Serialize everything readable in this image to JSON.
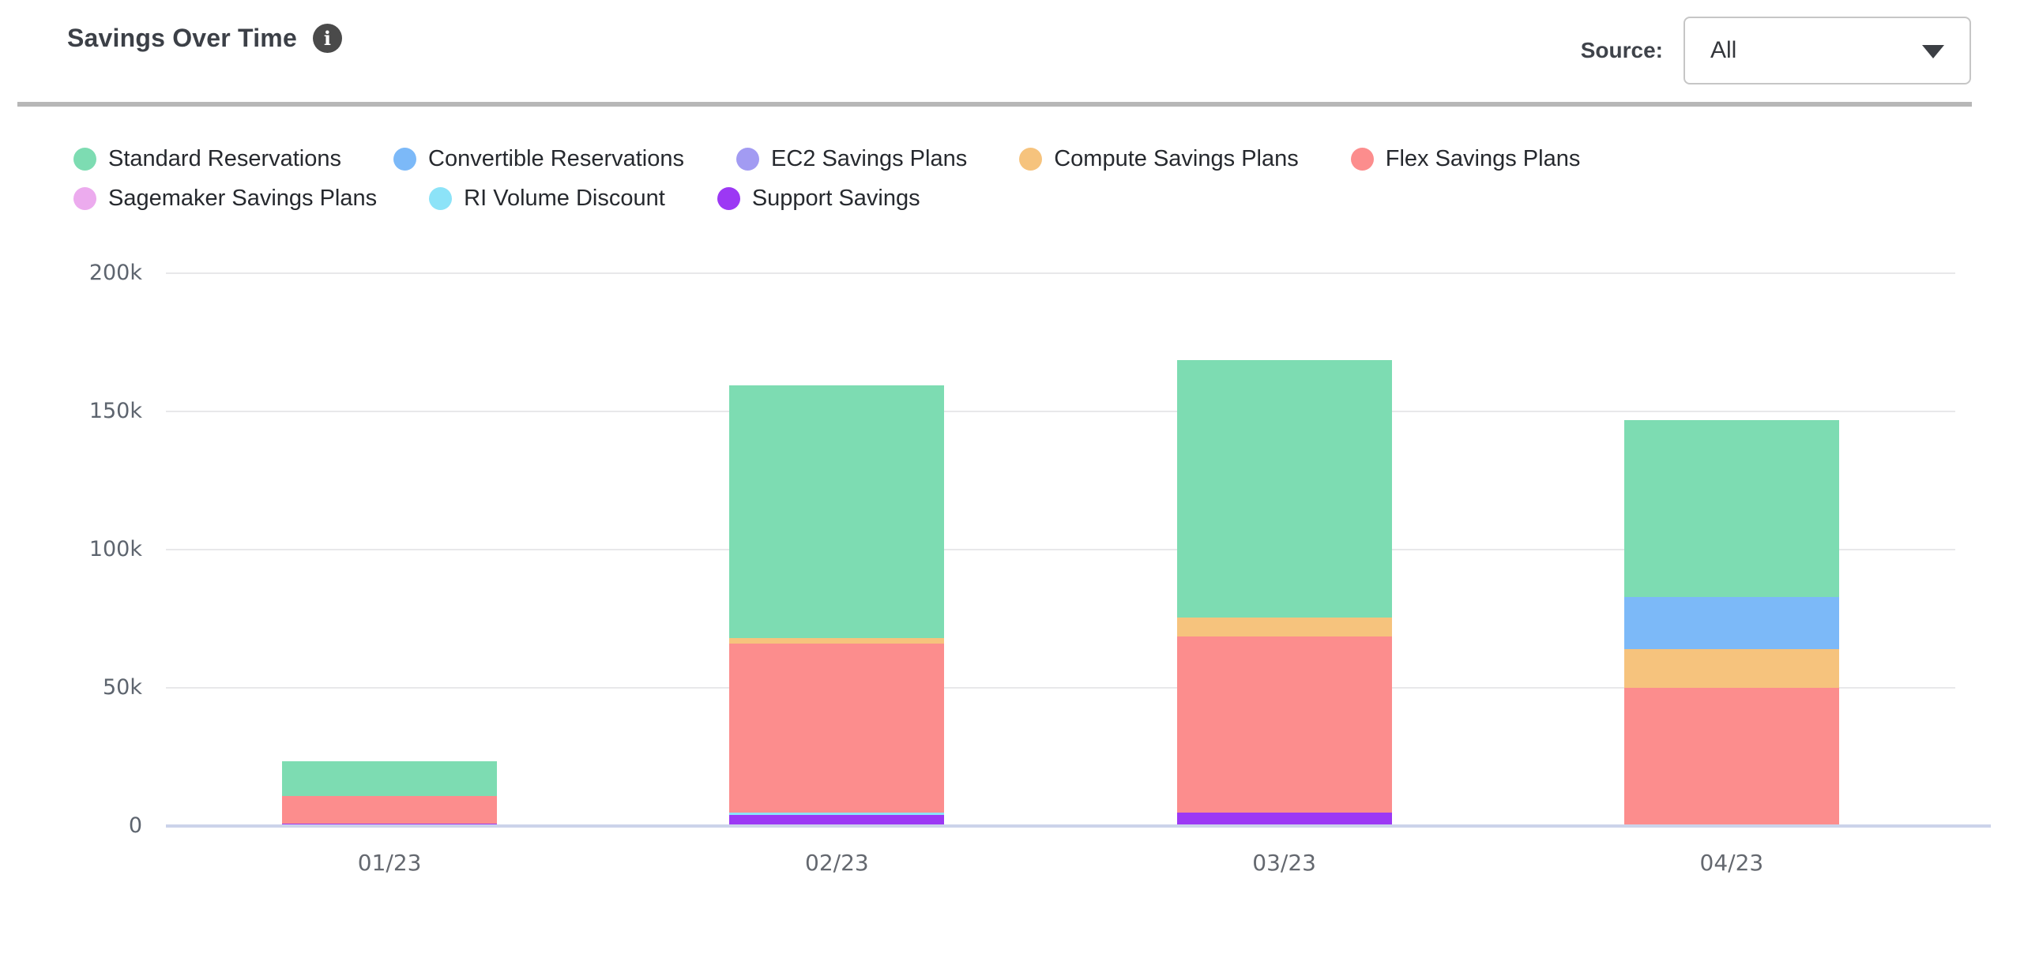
{
  "header": {
    "title": "Savings Over Time",
    "info_icon_glyph": "i",
    "source_label": "Source:",
    "source_value": "All"
  },
  "chart_data": {
    "type": "bar",
    "stacked": true,
    "stack_order": "reverse-legend (Support Savings at bottom, Standard Reservations on top)",
    "title": "Savings Over Time",
    "xlabel": "",
    "ylabel": "",
    "legend_position": "top",
    "grid": true,
    "categories": [
      "01/23",
      "02/23",
      "03/23",
      "04/23"
    ],
    "series": [
      {
        "name": "Standard Reservations",
        "color": "#7ddcb2",
        "values": [
          12500,
          91500,
          93000,
          64000
        ]
      },
      {
        "name": "Convertible Reservations",
        "color": "#7cb9f8",
        "values": [
          0,
          0,
          0,
          19000
        ]
      },
      {
        "name": "EC2 Savings Plans",
        "color": "#a29bf2",
        "values": [
          0,
          0,
          0,
          0
        ]
      },
      {
        "name": "Compute Savings Plans",
        "color": "#f6c37d",
        "values": [
          0,
          2000,
          7000,
          14000
        ]
      },
      {
        "name": "Flex Savings Plans",
        "color": "#fc8d8d",
        "values": [
          10000,
          61000,
          63500,
          50000
        ]
      },
      {
        "name": "Sagemaker Savings Plans",
        "color": "#ecabee",
        "values": [
          0,
          0,
          0,
          0
        ]
      },
      {
        "name": "RI Volume Discount",
        "color": "#8ce3f8",
        "values": [
          0,
          1000,
          0,
          0
        ]
      },
      {
        "name": "Support Savings",
        "color": "#9c38f4",
        "values": [
          1000,
          4000,
          5000,
          0
        ]
      }
    ],
    "ylim": [
      0,
      200000
    ],
    "yticks": [
      {
        "value": 0,
        "label": "0"
      },
      {
        "value": 50000,
        "label": "50k"
      },
      {
        "value": 100000,
        "label": "100k"
      },
      {
        "value": 150000,
        "label": "150k"
      },
      {
        "value": 200000,
        "label": "200k"
      }
    ]
  },
  "colors": {
    "gridline": "#e8e8ea",
    "baseline": "#ccd3ea",
    "divider": "#b7b7b7"
  }
}
